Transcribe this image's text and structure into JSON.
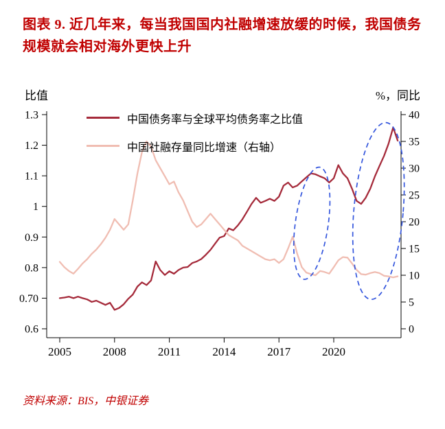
{
  "title": "图表 9. 近几年来，每当我国国内社融增速放缓的时候，我国债务规模就会相对海外更快上升",
  "footer": "资料来源：BIS，中银证券",
  "axes": {
    "left_label": "比值",
    "right_label": "%，同比",
    "left_ticks": [
      "1.3",
      "1.2",
      "1.1",
      "1",
      "0.9",
      "0.8",
      "0.70",
      "0.6"
    ],
    "right_ticks": [
      "40",
      "35",
      "30",
      "25",
      "20",
      "15",
      "10",
      "5",
      "0"
    ],
    "x_ticks": [
      "2005",
      "2008",
      "2011",
      "2014",
      "2017",
      "2020"
    ]
  },
  "legend": [
    {
      "label": "中国债务率与全球平均债务率之比值",
      "color": "#A52A3A"
    },
    {
      "label": "中国社融存量同比增速（右轴）",
      "color": "#F0BDB2"
    }
  ],
  "colors": {
    "title_red": "#C00000",
    "debt_ratio_line": "#A52A3A",
    "tsf_line": "#F0BDB2",
    "ellipse": "#3355DD",
    "axis": "#000000"
  },
  "chart_data": {
    "type": "line",
    "x_start": 2005,
    "x_step": 0.25,
    "x_end": 2023.5,
    "left_axis": {
      "label": "比值",
      "min": 0.6,
      "max": 1.3
    },
    "right_axis": {
      "label": "%，同比",
      "min": 0,
      "max": 40
    },
    "x_tick_years": [
      2005,
      2008,
      2011,
      2014,
      2017,
      2020
    ],
    "series": [
      {
        "name": "中国债务率与全球平均债务率之比值",
        "axis": "left",
        "color": "#A52A3A",
        "values": [
          0.7,
          0.702,
          0.705,
          0.7,
          0.705,
          0.7,
          0.696,
          0.688,
          0.692,
          0.685,
          0.678,
          0.685,
          0.662,
          0.668,
          0.68,
          0.698,
          0.712,
          0.738,
          0.752,
          0.743,
          0.758,
          0.82,
          0.792,
          0.776,
          0.788,
          0.78,
          0.792,
          0.8,
          0.802,
          0.815,
          0.82,
          0.828,
          0.842,
          0.858,
          0.878,
          0.898,
          0.903,
          0.928,
          0.922,
          0.938,
          0.958,
          0.983,
          1.008,
          1.028,
          1.012,
          1.018,
          1.025,
          1.018,
          1.032,
          1.068,
          1.078,
          1.062,
          1.068,
          1.082,
          1.095,
          1.108,
          1.105,
          1.098,
          1.092,
          1.078,
          1.092,
          1.135,
          1.108,
          1.092,
          1.058,
          1.018,
          1.008,
          1.028,
          1.058,
          1.098,
          1.132,
          1.165,
          1.205,
          1.258,
          1.215
        ]
      },
      {
        "name": "中国社融存量同比增速（右轴）",
        "axis": "right",
        "color": "#F0BDB2",
        "values": [
          12.5,
          11.5,
          10.8,
          10.3,
          11.2,
          12.2,
          13.0,
          14.0,
          14.8,
          15.8,
          17.0,
          18.5,
          20.5,
          19.5,
          18.5,
          19.5,
          24.0,
          29.0,
          33.0,
          35.0,
          34.0,
          31.5,
          30.0,
          28.5,
          27.0,
          27.5,
          25.5,
          24.0,
          22.0,
          20.0,
          19.0,
          19.5,
          20.5,
          21.5,
          20.5,
          19.5,
          18.5,
          17.5,
          17.0,
          16.5,
          15.5,
          15.0,
          14.5,
          14.0,
          13.5,
          13.0,
          12.8,
          13.0,
          12.3,
          13.0,
          15.0,
          17.2,
          14.0,
          11.5,
          10.5,
          10.2,
          10.0,
          10.8,
          10.6,
          10.3,
          11.5,
          12.8,
          13.4,
          13.3,
          12.2,
          11.0,
          10.2,
          10.1,
          10.4,
          10.6,
          10.4,
          9.9,
          9.8,
          9.6,
          9.8
        ]
      }
    ],
    "annotations": {
      "ellipses": [
        {
          "cx_t": 2018.8,
          "cy_left": 0.945,
          "rx_years": 0.9,
          "ry_left": 0.185,
          "rot": 8
        },
        {
          "cx_t": 2022.45,
          "cy_left": 0.985,
          "rx_years": 1.35,
          "ry_left": 0.29,
          "rot": 5
        }
      ]
    },
    "grid": false,
    "legend_position": "top-left-inside"
  }
}
